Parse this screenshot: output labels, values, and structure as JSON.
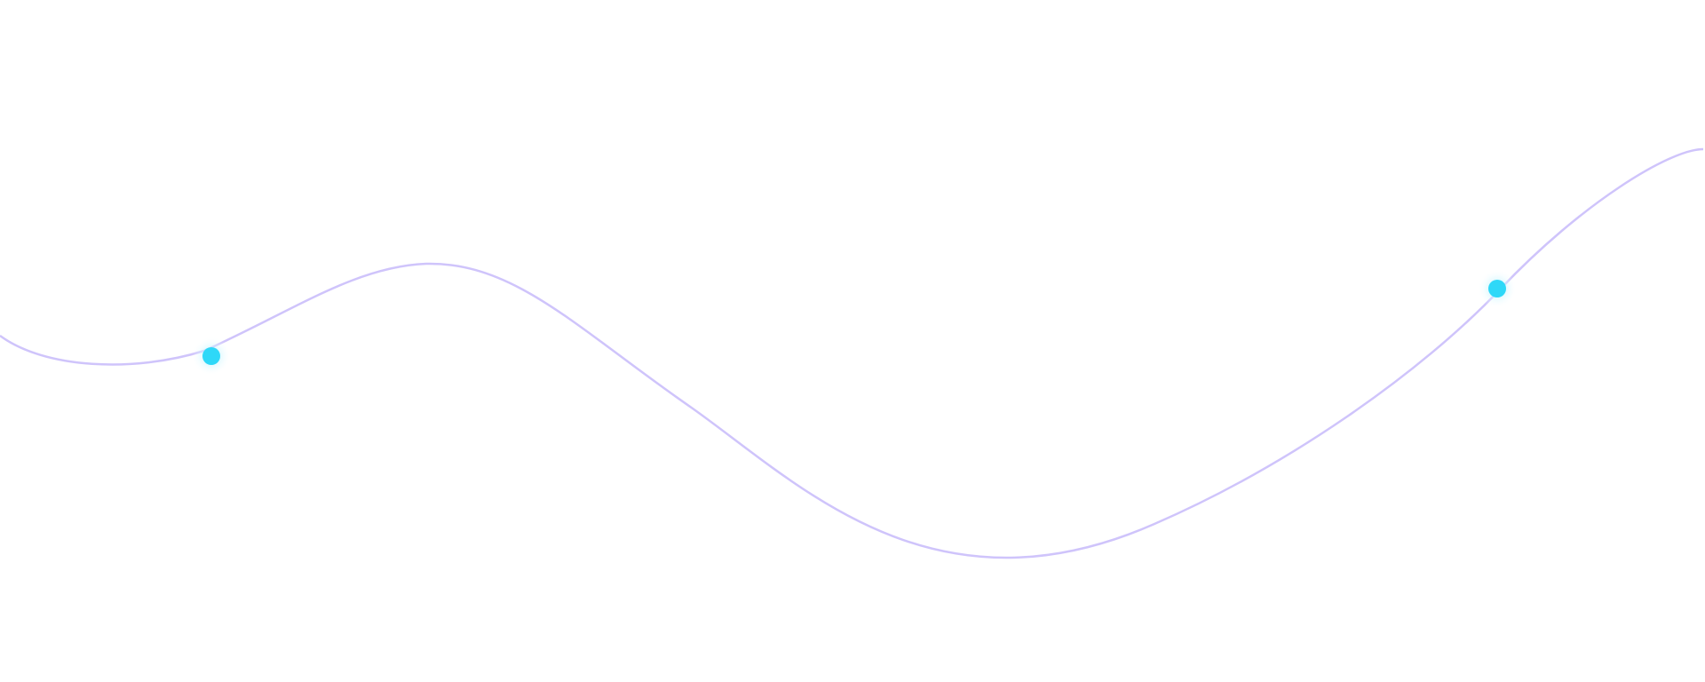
{
  "decoration": {
    "line_color": "#cfc4fb",
    "dot_color": "#2ed8f8",
    "glow_color": "#bff4ff",
    "dots": [
      "dot-left",
      "dot-right"
    ]
  }
}
